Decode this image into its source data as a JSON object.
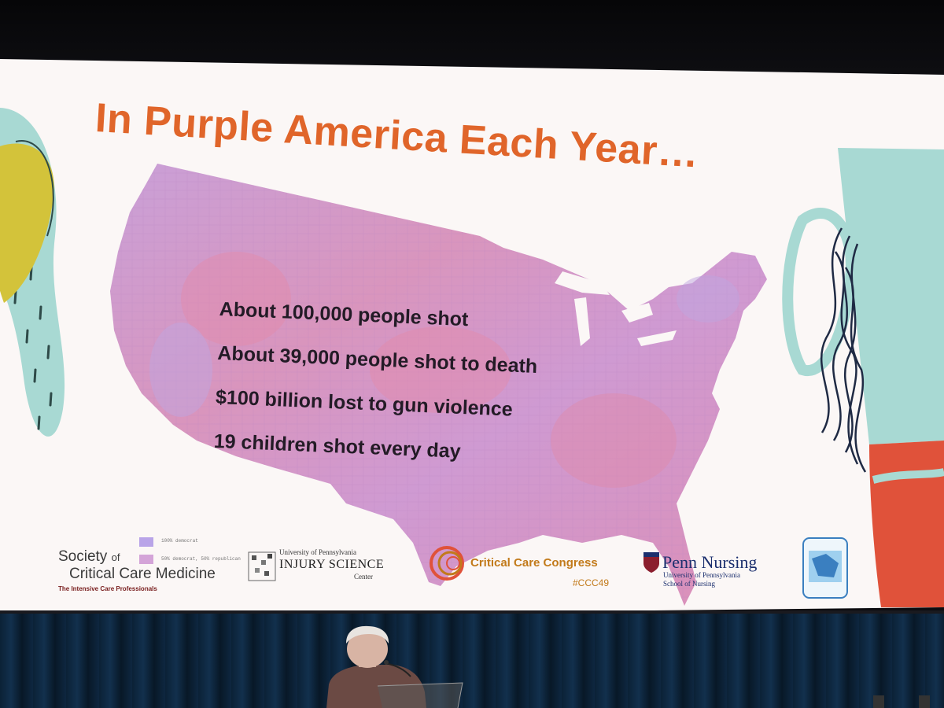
{
  "slide": {
    "title": "In Purple America Each Year…",
    "stats": [
      "About 100,000 people shot",
      "About 39,000 people shot to death",
      "$100 billion lost to gun violence",
      "19 children shot every day"
    ],
    "legend": [
      "100% democrat",
      "50% democrat, 50% republican"
    ]
  },
  "logos": {
    "sccm": {
      "line1": "Society",
      "line1_small": "of",
      "line2": "Critical Care Medicine",
      "tagline": "The Intensive Care Professionals"
    },
    "upenn_injury": {
      "line1": "University of Pennsylvania",
      "line2": "INJURY SCIENCE",
      "line3": "Center"
    },
    "critical_care_congress": {
      "name": "Critical Care Congress",
      "hashtag": "#CCC49"
    },
    "penn_nursing": {
      "line1": "Penn Nursing",
      "line2": "University of Pennsylvania",
      "line3": "School of Nursing"
    }
  },
  "colors": {
    "title": "#e0652a",
    "map_purple": "#c595d4",
    "map_pink": "#de90b4",
    "screen": "#fbf7f6",
    "accent_red": "#e0523a",
    "accent_teal": "#a8d9d3",
    "accent_yellow": "#d3c33a"
  },
  "icons": [
    "penn-shield-icon",
    "congress-swirl-icon",
    "globe-badge-icon"
  ]
}
